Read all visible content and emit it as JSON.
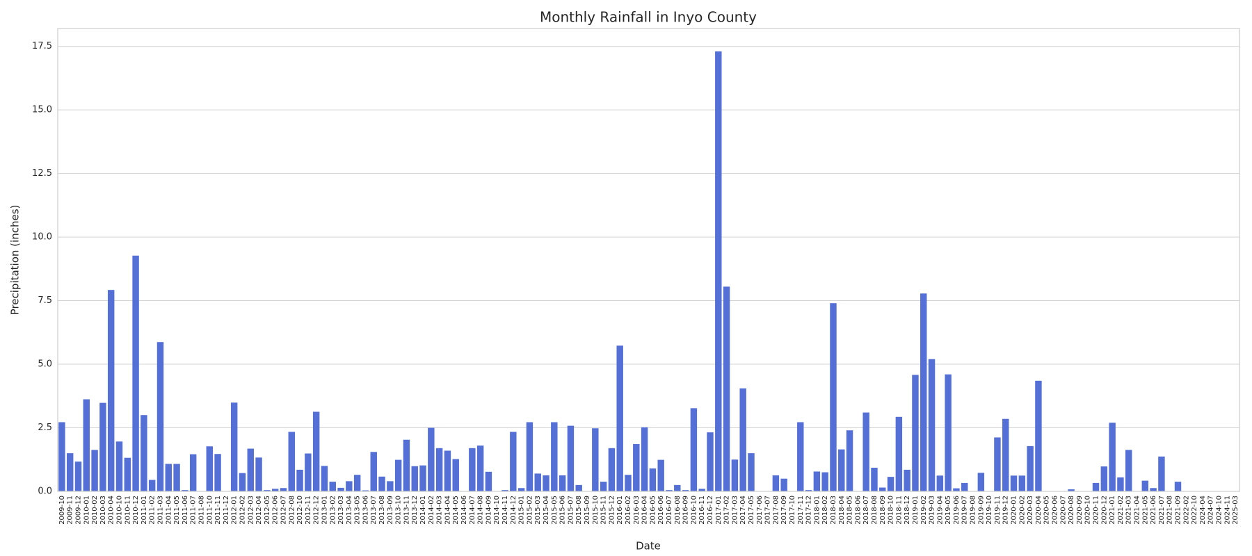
{
  "chart_data": {
    "type": "bar",
    "title": "Monthly Rainfall in Inyo County",
    "xlabel": "Date",
    "ylabel": "Precipitation (inches)",
    "categories": [
      "2009-10",
      "2009-11",
      "2009-12",
      "2010-01",
      "2010-02",
      "2010-03",
      "2010-04",
      "2010-10",
      "2010-11",
      "2010-12",
      "2011-01",
      "2011-02",
      "2011-03",
      "2011-04",
      "2011-05",
      "2011-06",
      "2011-07",
      "2011-08",
      "2011-10",
      "2011-11",
      "2011-12",
      "2012-01",
      "2012-02",
      "2012-03",
      "2012-04",
      "2012-05",
      "2012-06",
      "2012-07",
      "2012-08",
      "2012-10",
      "2012-11",
      "2012-12",
      "2013-01",
      "2013-02",
      "2013-03",
      "2013-04",
      "2013-05",
      "2013-06",
      "2013-07",
      "2013-08",
      "2013-09",
      "2013-10",
      "2013-11",
      "2013-12",
      "2014-01",
      "2014-02",
      "2014-03",
      "2014-04",
      "2014-05",
      "2014-06",
      "2014-07",
      "2014-08",
      "2014-09",
      "2014-10",
      "2014-11",
      "2014-12",
      "2015-01",
      "2015-02",
      "2015-03",
      "2015-04",
      "2015-05",
      "2015-06",
      "2015-07",
      "2015-08",
      "2015-09",
      "2015-10",
      "2015-11",
      "2015-12",
      "2016-01",
      "2016-02",
      "2016-03",
      "2016-04",
      "2016-05",
      "2016-06",
      "2016-07",
      "2016-08",
      "2016-09",
      "2016-10",
      "2016-11",
      "2016-12",
      "2017-01",
      "2017-02",
      "2017-03",
      "2017-04",
      "2017-05",
      "2017-06",
      "2017-07",
      "2017-08",
      "2017-09",
      "2017-10",
      "2017-11",
      "2017-12",
      "2018-01",
      "2018-02",
      "2018-03",
      "2018-04",
      "2018-05",
      "2018-06",
      "2018-07",
      "2018-08",
      "2018-09",
      "2018-10",
      "2018-11",
      "2018-12",
      "2019-01",
      "2019-02",
      "2019-03",
      "2019-04",
      "2019-05",
      "2019-06",
      "2019-07",
      "2019-08",
      "2019-09",
      "2019-10",
      "2019-11",
      "2019-12",
      "2020-01",
      "2020-02",
      "2020-03",
      "2020-04",
      "2020-05",
      "2020-06",
      "2020-07",
      "2020-08",
      "2020-09",
      "2020-10",
      "2020-11",
      "2020-12",
      "2021-01",
      "2021-02",
      "2021-03",
      "2021-04",
      "2021-05",
      "2021-06",
      "2021-07",
      "2021-08",
      "2021-09",
      "2022-02",
      "2022-10",
      "2024-04",
      "2024-07",
      "2024-10",
      "2024-11",
      "2025-03"
    ],
    "values": [
      2.72,
      1.5,
      1.17,
      3.62,
      1.63,
      3.48,
      7.92,
      1.96,
      1.32,
      9.27,
      3.0,
      0.45,
      5.87,
      1.08,
      1.08,
      0.05,
      1.46,
      0,
      1.77,
      1.47,
      0,
      3.49,
      0.72,
      1.68,
      1.33,
      0.05,
      0.1,
      0.13,
      2.34,
      0.85,
      1.49,
      3.13,
      1.0,
      0.38,
      0.14,
      0.4,
      0.65,
      0.04,
      1.55,
      0.58,
      0.4,
      1.24,
      2.03,
      0.99,
      1.02,
      2.5,
      1.7,
      1.6,
      1.27,
      0,
      1.7,
      1.8,
      0.77,
      0,
      0.05,
      2.34,
      0.13,
      2.72,
      0.7,
      0.63,
      2.72,
      0.63,
      2.58,
      0.25,
      0,
      2.48,
      0.38,
      1.7,
      5.73,
      0.65,
      1.86,
      2.52,
      0.9,
      1.24,
      0.05,
      0.25,
      0.05,
      3.27,
      0.1,
      2.32,
      17.3,
      8.05,
      1.25,
      4.05,
      1.5,
      0,
      0,
      0.63,
      0.5,
      0,
      2.72,
      0.05,
      0.78,
      0.75,
      7.4,
      1.65,
      2.4,
      0,
      3.1,
      0.93,
      0.15,
      0.57,
      2.93,
      0.85,
      4.58,
      7.78,
      5.2,
      0.62,
      4.6,
      0.12,
      0.33,
      0,
      0.73,
      0,
      2.12,
      2.85,
      0.62,
      0.62,
      1.78,
      4.35,
      0,
      0,
      0,
      0.08,
      0,
      0,
      0.33,
      0.98,
      2.7,
      0.55,
      1.63,
      0,
      0.42,
      0.13,
      1.37,
      0,
      0.38,
      0,
      0,
      0,
      0,
      0,
      0,
      0
    ],
    "color": "#5470d6",
    "ylim": [
      0,
      18.2
    ],
    "yticks": [
      {
        "value": 0,
        "label": "0.0"
      },
      2.5,
      {
        "value": 5,
        "label": "5.0"
      },
      7.5,
      {
        "value": 10,
        "label": "10.0"
      },
      12.5,
      {
        "value": 15,
        "label": "15.0"
      },
      17.5
    ],
    "grid": true
  }
}
